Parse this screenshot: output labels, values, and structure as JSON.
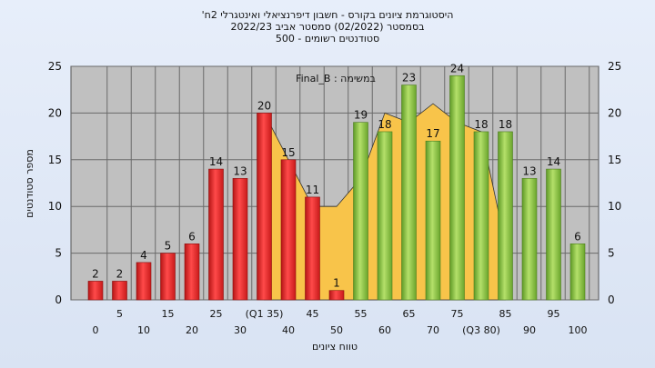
{
  "chart_data": {
    "type": "bar",
    "title_lines": [
      "'היסטוגרמת ציונים בקורס - חשבון דיפרנציאלי ואינטגרלי 2ח",
      "בסמסטר  (02/2022)  סמסטר אביב 2022/23",
      "סטודנטים רשומים - 500"
    ],
    "xlabel": "טווח ציונים",
    "ylabel": "מספר סטודנטים",
    "annotation": "Final_B : במשימה",
    "ylim": [
      0,
      25
    ],
    "yticks": [
      0,
      5,
      10,
      15,
      20,
      25
    ],
    "grid": true,
    "x_tick_labels_upper": [
      "5",
      "15",
      "25",
      "(Q1 35)",
      "45",
      "55",
      "65",
      "75",
      "85",
      "95"
    ],
    "x_tick_labels_lower": [
      "0",
      "10",
      "20",
      "30",
      "40",
      "50",
      "60",
      "70",
      "(Q3 80)",
      "90",
      "100"
    ],
    "categories": [
      "0",
      "5",
      "10",
      "15",
      "20",
      "25",
      "30",
      "35",
      "40",
      "45",
      "50",
      "55",
      "60",
      "65",
      "70",
      "75",
      "80",
      "85",
      "90",
      "95",
      "100"
    ],
    "values": [
      2,
      2,
      4,
      5,
      6,
      14,
      13,
      20,
      15,
      11,
      1,
      19,
      18,
      23,
      17,
      24,
      18,
      18,
      13,
      14,
      6
    ],
    "bar_colors": [
      "red",
      "red",
      "red",
      "red",
      "red",
      "red",
      "red",
      "red",
      "red",
      "red",
      "red",
      "green",
      "green",
      "green",
      "green",
      "green",
      "green",
      "green",
      "green",
      "green",
      "green"
    ],
    "area_series": {
      "x": [
        35,
        40,
        45,
        50,
        55,
        60,
        65,
        70,
        75,
        80,
        85
      ],
      "values": [
        20,
        15,
        10,
        10,
        13,
        20,
        19,
        21,
        19,
        18,
        6
      ]
    },
    "colors": {
      "red": "#e02020",
      "green": "#8cc63f",
      "area": "#f8c44a",
      "plot_bg": "#c0c0c0"
    }
  }
}
